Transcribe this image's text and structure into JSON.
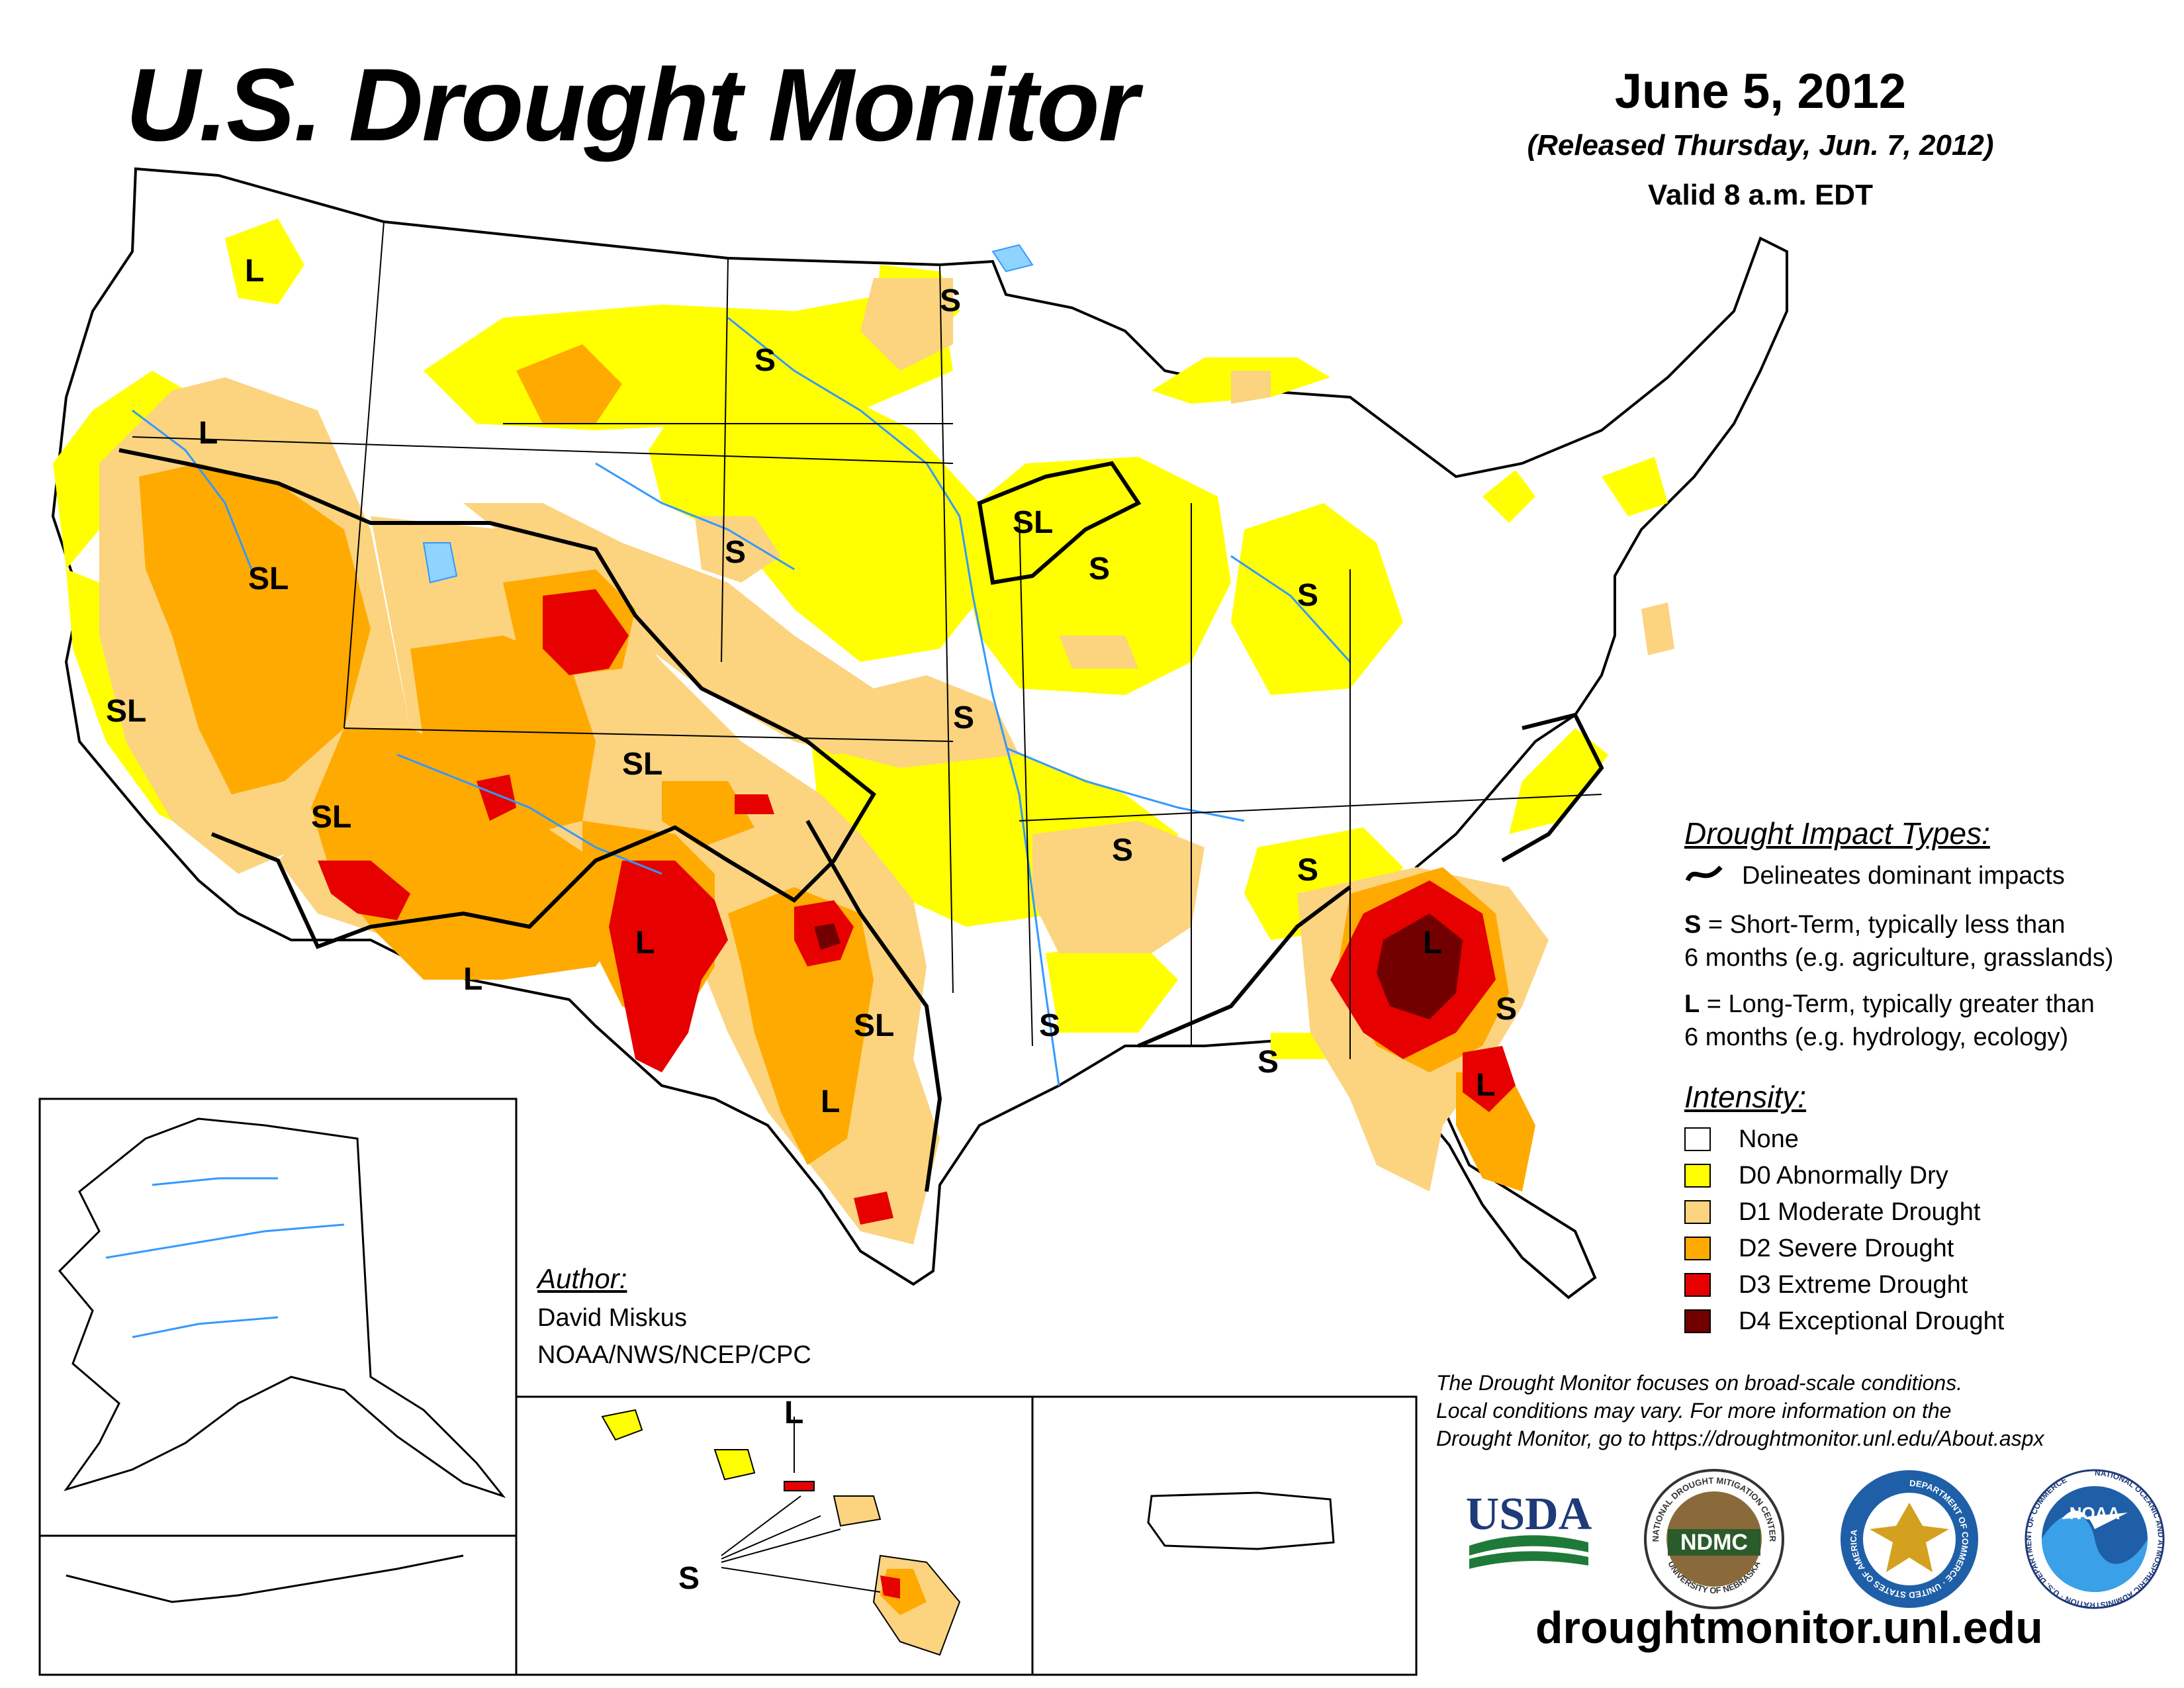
{
  "header": {
    "title": "U.S. Drought Monitor",
    "date": "June 5, 2012",
    "released": "(Released Thursday, Jun. 7, 2012)",
    "valid": "Valid 8 a.m. EDT"
  },
  "impact_types": {
    "heading": "Drought Impact Types:",
    "delineates": "Delineates dominant impacts",
    "short_term": {
      "letter": "S",
      "text1": " = Short-Term, typically less than",
      "text2": "6 months (e.g. agriculture, grasslands)"
    },
    "long_term": {
      "letter": "L",
      "text1": " = Long-Term, typically greater than",
      "text2": "6 months (e.g. hydrology, ecology)"
    }
  },
  "intensity": {
    "heading": "Intensity:",
    "levels": [
      {
        "label": "None",
        "color": "#ffffff"
      },
      {
        "label": "D0 Abnormally Dry",
        "color": "#ffff00"
      },
      {
        "label": "D1 Moderate Drought",
        "color": "#fcd37f"
      },
      {
        "label": "D2 Severe Drought",
        "color": "#ffaa00"
      },
      {
        "label": "D3 Extreme Drought",
        "color": "#e60000"
      },
      {
        "label": "D4 Exceptional Drought",
        "color": "#730000"
      }
    ]
  },
  "author": {
    "heading": "Author:",
    "name": "David Miskus",
    "org": "NOAA/NWS/NCEP/CPC"
  },
  "disclaimer": {
    "line1": "The Drought Monitor focuses on broad-scale conditions.",
    "line2": "Local conditions may vary. For more information on the",
    "line3": "Drought Monitor, go to https://droughtmonitor.unl.edu/About.aspx"
  },
  "logos": {
    "usda": "USDA",
    "ndmc": "NDMC",
    "ndmc_ring_top": "NATIONAL DROUGHT MITIGATION CENTER",
    "ndmc_ring_bottom": "UNIVERSITY OF NEBRASKA",
    "commerce_ring": "DEPARTMENT OF COMMERCE · UNITED STATES OF AMERICA",
    "noaa": "NOAA",
    "noaa_ring": "NATIONAL OCEANIC AND ATMOSPHERIC ADMINISTRATION · U.S. DEPARTMENT OF COMMERCE"
  },
  "website": "droughtmonitor.unl.edu",
  "map_labels": {
    "l_idaho": "L",
    "s_minnesota": "S",
    "s_north_dakota": "S",
    "l_oregon": "L",
    "sl_nevada": "SL",
    "sl_california": "SL",
    "sl_wisconsin": "SL",
    "s_illinois": "S",
    "s_nebraska": "S",
    "s_ohio": "S",
    "s_kansas": "S",
    "sl_colorado": "SL",
    "sl_arizona": "SL",
    "l_arizona": "L",
    "l_new_mexico": "L",
    "s_arkansas": "S",
    "s_tennessee": "S",
    "l_georgia": "L",
    "sl_texas": "SL",
    "s_louisiana": "S",
    "l_texas": "L",
    "s_gulf": "S",
    "l_florida": "L",
    "s_carolina": "S",
    "l_hawaii": "L",
    "s_hawaii": "S"
  }
}
